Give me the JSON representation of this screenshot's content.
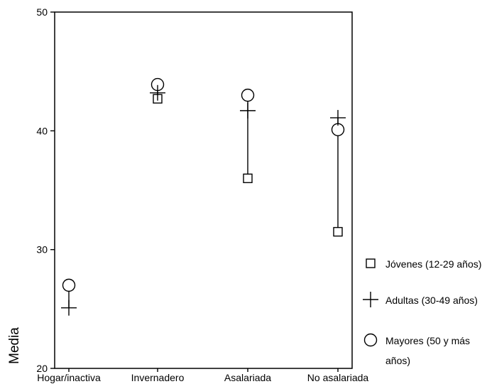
{
  "chart_data": {
    "type": "scatter",
    "ylabel": "Media",
    "xlabel": "",
    "ylim": [
      20,
      50
    ],
    "yticks": [
      20,
      30,
      40,
      50
    ],
    "categories": [
      "Hogar/inactiva",
      "Invernadero",
      "Asalariada",
      "No asalariada"
    ],
    "series": [
      {
        "name": "Jóvenes (12-29 años)",
        "marker": "square",
        "values": [
          27.0,
          42.7,
          36.0,
          31.5
        ]
      },
      {
        "name": "Adultas (30-49 años)",
        "marker": "plus",
        "values": [
          25.1,
          43.2,
          41.7,
          41.1
        ]
      },
      {
        "name": "Mayores (50 y más años)",
        "marker": "circle",
        "values": [
          27.0,
          43.9,
          43.0,
          40.1
        ]
      }
    ],
    "legend": {
      "position": "right",
      "entries": [
        {
          "marker": "square",
          "lines": [
            "Jóvenes (12-29 años)"
          ]
        },
        {
          "marker": "plus",
          "lines": [
            "Adultas (30-49 años)"
          ]
        },
        {
          "marker": "circle",
          "lines": [
            "Mayores (50 y más",
            "años)"
          ]
        }
      ]
    },
    "grid": false,
    "range_lines": true
  }
}
